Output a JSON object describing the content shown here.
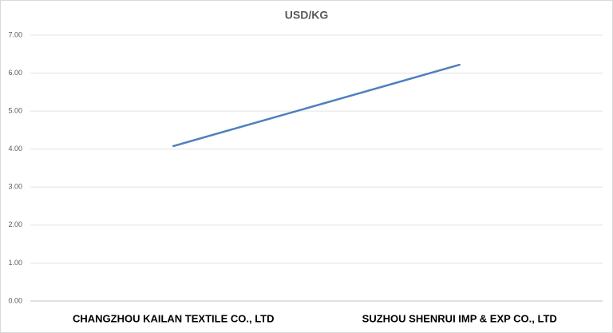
{
  "chart_data": {
    "type": "line",
    "title": "USD/KG",
    "categories": [
      "CHANGZHOU KAILAN TEXTILE CO., LTD",
      "SUZHOU SHENRUI IMP & EXP CO., LTD"
    ],
    "series": [
      {
        "name": "USD/KG",
        "color": "#4f7fbf",
        "values": [
          4.08,
          6.22
        ]
      }
    ],
    "ylim": [
      0,
      7
    ],
    "yticks": [
      {
        "value": 0,
        "label": "0.00"
      },
      {
        "value": 1,
        "label": "1.00"
      },
      {
        "value": 2,
        "label": "2.00"
      },
      {
        "value": 3,
        "label": "3.00"
      },
      {
        "value": 4,
        "label": "4.00"
      },
      {
        "value": 5,
        "label": "5.00"
      },
      {
        "value": 6,
        "label": "6.00"
      },
      {
        "value": 7,
        "label": "7.00"
      }
    ],
    "grid": true
  }
}
